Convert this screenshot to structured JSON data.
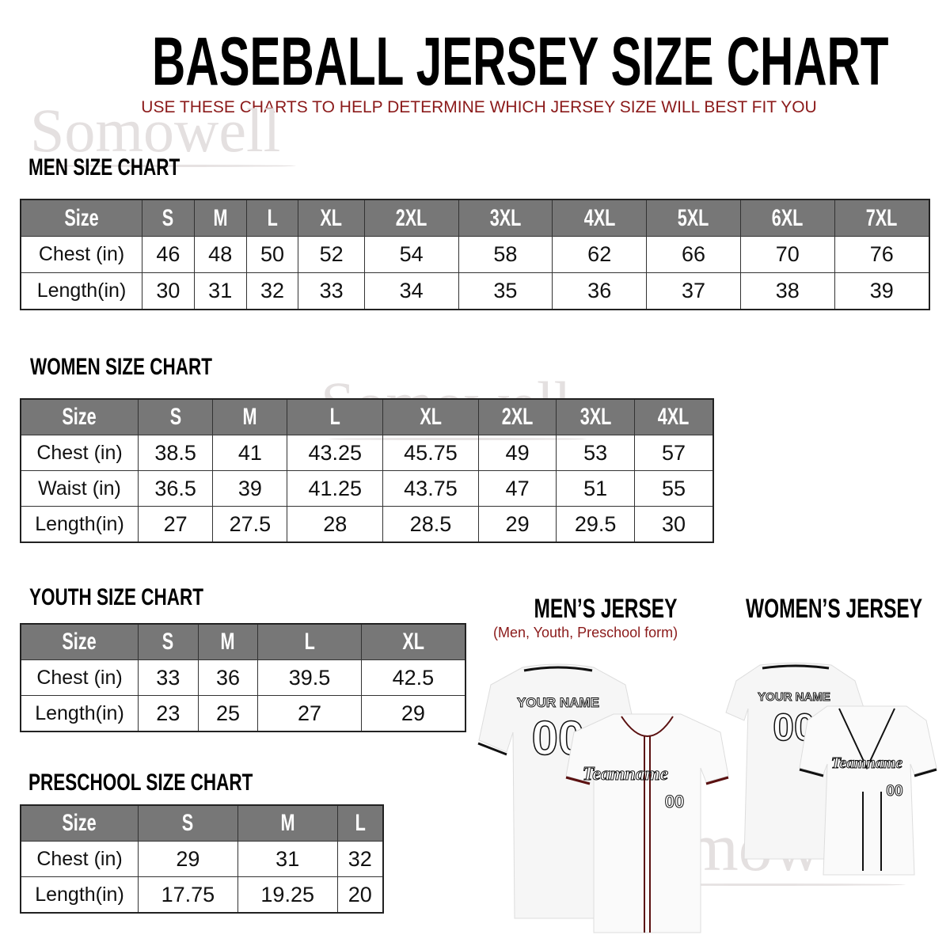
{
  "header": {
    "title": "BASEBALL JERSEY SIZE CHART",
    "subtitle": "USE THESE CHARTS TO HELP DETERMINE WHICH JERSEY SIZE WILL BEST FIT YOU",
    "watermark": "Somowell"
  },
  "colors": {
    "header_fill": "#777777",
    "accent_red": "#8b1a1a",
    "text": "#000000"
  },
  "tables": {
    "men": {
      "title": "MEN SIZE CHART",
      "columns": [
        "Size",
        "S",
        "M",
        "L",
        "XL",
        "2XL",
        "3XL",
        "4XL",
        "5XL",
        "6XL",
        "7XL"
      ],
      "rows": [
        [
          "Chest (in)",
          "46",
          "48",
          "50",
          "52",
          "54",
          "58",
          "62",
          "66",
          "70",
          "76"
        ],
        [
          "Length(in)",
          "30",
          "31",
          "32",
          "33",
          "34",
          "35",
          "36",
          "37",
          "38",
          "39"
        ]
      ]
    },
    "women": {
      "title": "WOMEN SIZE CHART",
      "columns": [
        "Size",
        "S",
        "M",
        "L",
        "XL",
        "2XL",
        "3XL",
        "4XL"
      ],
      "rows": [
        [
          "Chest (in)",
          "38.5",
          "41",
          "43.25",
          "45.75",
          "49",
          "53",
          "57"
        ],
        [
          "Waist (in)",
          "36.5",
          "39",
          "41.25",
          "43.75",
          "47",
          "51",
          "55"
        ],
        [
          "Length(in)",
          "27",
          "27.5",
          "28",
          "28.5",
          "29",
          "29.5",
          "30"
        ]
      ]
    },
    "youth": {
      "title": "YOUTH SIZE CHART",
      "columns": [
        "Size",
        "S",
        "M",
        "L",
        "XL"
      ],
      "rows": [
        [
          "Chest (in)",
          "33",
          "36",
          "39.5",
          "42.5"
        ],
        [
          "Length(in)",
          "23",
          "25",
          "27",
          "29"
        ]
      ]
    },
    "preschool": {
      "title": "PRESCHOOL SIZE CHART",
      "columns": [
        "Size",
        "S",
        "M",
        "L"
      ],
      "rows": [
        [
          "Chest (in)",
          "29",
          "31",
          "32"
        ],
        [
          "Length(in)",
          "17.75",
          "19.25",
          "20"
        ]
      ]
    }
  },
  "jerseys": {
    "men": {
      "title": "MEN’S JERSEY",
      "subtitle": "(Men, Youth, Preschool form)"
    },
    "women": {
      "title": "WOMEN’S JERSEY"
    },
    "back_text": "YOUR NAME",
    "number": "00",
    "team_text": "Teamname"
  }
}
